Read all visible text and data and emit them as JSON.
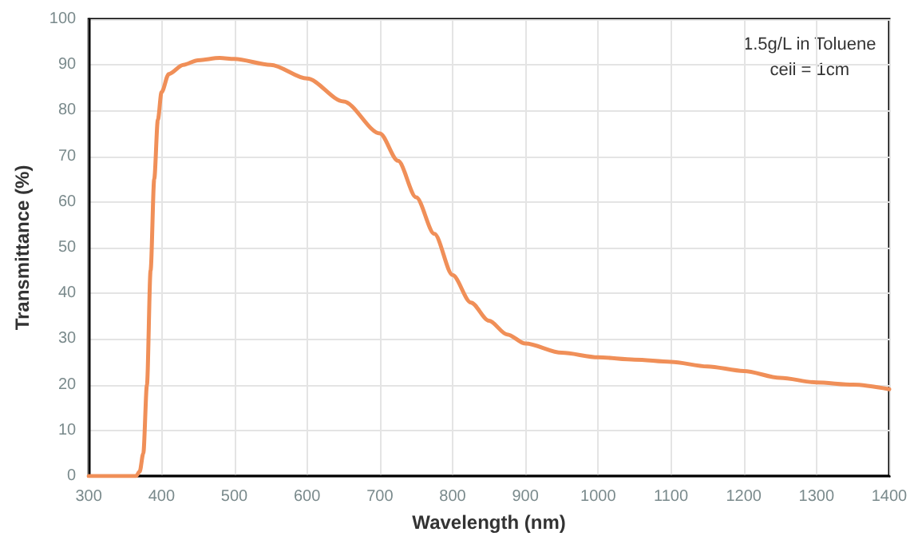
{
  "chart_data": {
    "type": "line",
    "xlabel": "Wavelength (nm)",
    "ylabel": "Transmittance (%)",
    "annotations": [
      "1.5g/L in Toluene",
      "cell = 1cm"
    ],
    "series": [
      {
        "color": "#f08f58",
        "x": [
          300,
          330,
          365,
          370,
          375,
          380,
          385,
          390,
          395,
          400,
          410,
          430,
          450,
          480,
          500,
          550,
          600,
          650,
          700,
          725,
          750,
          775,
          800,
          825,
          850,
          875,
          900,
          950,
          1000,
          1050,
          1100,
          1150,
          1200,
          1250,
          1300,
          1350,
          1400
        ],
        "values": [
          0,
          0,
          0,
          1,
          5,
          20,
          45,
          65,
          78,
          84,
          88,
          90,
          91,
          91.5,
          91.3,
          90,
          87,
          82,
          75,
          69,
          61,
          53,
          44,
          38,
          34,
          31,
          29,
          27,
          26,
          25.5,
          25,
          24,
          23,
          21.5,
          20.5,
          20,
          19
        ]
      }
    ],
    "xlim": [
      300,
      1400
    ],
    "xticks": [
      300,
      400,
      500,
      600,
      700,
      800,
      900,
      1000,
      1100,
      1200,
      1300,
      1400
    ],
    "ylim": [
      0,
      100
    ],
    "yticks": [
      0,
      10,
      20,
      30,
      40,
      50,
      60,
      70,
      80,
      90,
      100
    ],
    "grid": true,
    "marker": "none",
    "line_style": "solid"
  }
}
